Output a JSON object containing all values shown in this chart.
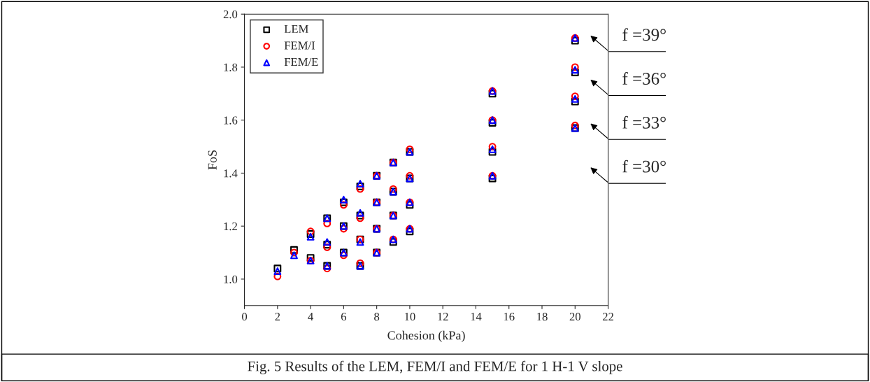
{
  "chart_data": {
    "type": "scatter",
    "xlabel": "Cohesion (kPa)",
    "ylabel": "FoS",
    "xlim": [
      0,
      22
    ],
    "xticks": [
      0,
      2,
      4,
      6,
      8,
      10,
      12,
      14,
      16,
      18,
      20,
      22
    ],
    "ylim": [
      0.9,
      2.0
    ],
    "yticks": [
      {
        "value": 1.0,
        "label": "1.0"
      },
      {
        "value": 1.2,
        "label": "1.2"
      },
      {
        "value": 1.4,
        "label": "1.4"
      },
      {
        "value": 1.6,
        "label": "1.6"
      },
      {
        "value": 1.8,
        "label": "1.8"
      },
      {
        "value": 2.0,
        "label": "2.0"
      }
    ],
    "grid": false,
    "legend": "top left",
    "series": [
      {
        "name": "LEM",
        "color": "#000000",
        "marker": "square",
        "x": [
          2,
          3,
          4,
          4,
          5,
          5,
          5,
          6,
          6,
          6,
          7,
          7,
          7,
          7,
          8,
          8,
          8,
          8,
          9,
          9,
          9,
          9,
          10,
          10,
          10,
          10,
          15,
          15,
          15,
          15,
          20,
          20,
          20,
          20
        ],
        "values": [
          1.04,
          1.11,
          1.17,
          1.08,
          1.23,
          1.13,
          1.05,
          1.29,
          1.2,
          1.1,
          1.35,
          1.24,
          1.15,
          1.05,
          1.39,
          1.29,
          1.19,
          1.1,
          1.44,
          1.33,
          1.24,
          1.14,
          1.48,
          1.38,
          1.28,
          1.18,
          1.7,
          1.59,
          1.48,
          1.38,
          1.9,
          1.78,
          1.67,
          1.57
        ]
      },
      {
        "name": "FEM/I",
        "color": "#ff0000",
        "marker": "circle",
        "x": [
          2,
          3,
          4,
          4,
          5,
          5,
          5,
          6,
          6,
          6,
          7,
          7,
          7,
          7,
          8,
          8,
          8,
          8,
          9,
          9,
          9,
          9,
          10,
          10,
          10,
          10,
          15,
          15,
          15,
          15,
          20,
          20,
          20,
          20
        ],
        "values": [
          1.01,
          1.1,
          1.18,
          1.07,
          1.21,
          1.12,
          1.04,
          1.28,
          1.19,
          1.09,
          1.34,
          1.23,
          1.15,
          1.06,
          1.39,
          1.29,
          1.19,
          1.1,
          1.44,
          1.34,
          1.24,
          1.15,
          1.49,
          1.39,
          1.29,
          1.19,
          1.71,
          1.6,
          1.5,
          1.39,
          1.91,
          1.8,
          1.69,
          1.58
        ]
      },
      {
        "name": "FEM/E",
        "color": "#0000ff",
        "marker": "triangle",
        "x": [
          2,
          3,
          4,
          4,
          5,
          5,
          5,
          6,
          6,
          6,
          7,
          7,
          7,
          7,
          8,
          8,
          8,
          8,
          9,
          9,
          9,
          9,
          10,
          10,
          10,
          10,
          15,
          15,
          15,
          15,
          20,
          20,
          20,
          20
        ],
        "values": [
          1.03,
          1.09,
          1.16,
          1.07,
          1.23,
          1.14,
          1.05,
          1.3,
          1.2,
          1.1,
          1.36,
          1.25,
          1.14,
          1.05,
          1.39,
          1.29,
          1.19,
          1.1,
          1.44,
          1.33,
          1.24,
          1.15,
          1.48,
          1.38,
          1.29,
          1.19,
          1.71,
          1.6,
          1.49,
          1.39,
          1.91,
          1.79,
          1.68,
          1.57
        ]
      }
    ],
    "annotations": [
      "f =39°",
      "f =36°",
      "f =33°",
      "f =30°",
      "Fig. 5 Results of the LEM, FEM/I and FEM/E for 1 H-1 V slope"
    ]
  }
}
